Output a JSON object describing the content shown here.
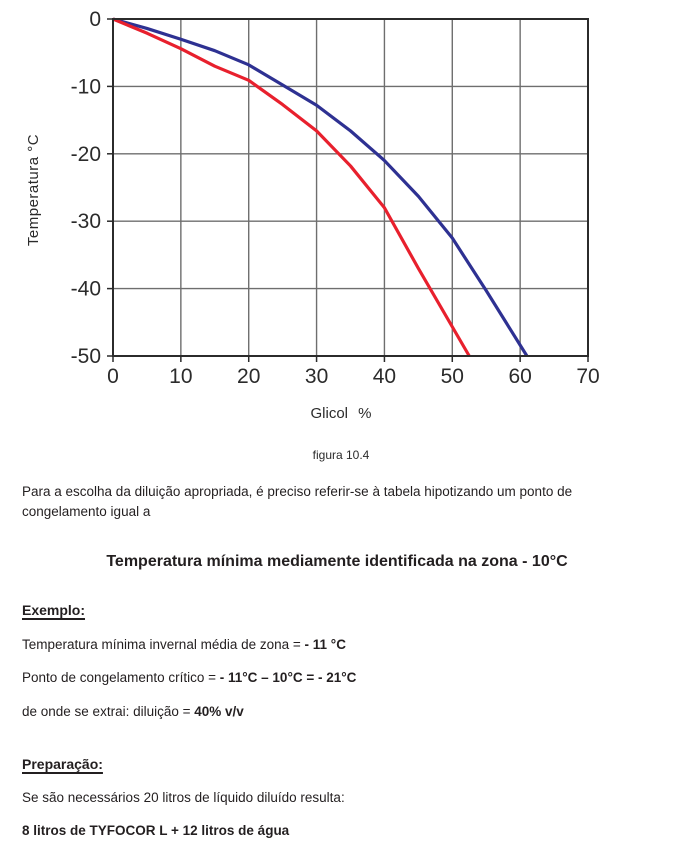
{
  "figure": {
    "caption": "figura 10.4"
  },
  "chart_data": {
    "type": "line",
    "title": "",
    "xlabel": "Glicol %",
    "ylabel": "Temperatura °C",
    "xlim": [
      0,
      70
    ],
    "ylim": [
      -50,
      0
    ],
    "x_ticks": [
      0,
      10,
      20,
      30,
      40,
      50,
      60,
      70
    ],
    "y_ticks": [
      0,
      -10,
      -20,
      -30,
      -40,
      -50
    ],
    "grid": true,
    "legend_position": "none",
    "colors": {
      "grid": "#6e6e6e",
      "axis": "#2b2b2b",
      "tick_text": "#2b2b2b"
    },
    "series": [
      {
        "name": "blue-curve",
        "color": "#2e3192",
        "points": [
          [
            0,
            0
          ],
          [
            5,
            -1.4
          ],
          [
            10,
            -3
          ],
          [
            15,
            -4.7
          ],
          [
            20,
            -6.8
          ],
          [
            25,
            -9.8
          ],
          [
            30,
            -12.8
          ],
          [
            35,
            -16.6
          ],
          [
            40,
            -21
          ],
          [
            45,
            -26.3
          ],
          [
            50,
            -32.5
          ],
          [
            55,
            -40.3
          ],
          [
            61,
            -50
          ]
        ]
      },
      {
        "name": "red-curve",
        "color": "#e8202d",
        "points": [
          [
            0,
            0
          ],
          [
            5,
            -2.1
          ],
          [
            10,
            -4.4
          ],
          [
            15,
            -7
          ],
          [
            20,
            -9.1
          ],
          [
            25,
            -12.7
          ],
          [
            30,
            -16.6
          ],
          [
            35,
            -21.8
          ],
          [
            40,
            -28
          ],
          [
            45,
            -37
          ],
          [
            52.5,
            -50
          ]
        ]
      }
    ]
  },
  "text": {
    "intro": "Para a escolha da diluição apropriada, é preciso referir-se à tabela hipotizando um ponto de congelamento igual a",
    "highlight": "Temperatura mínima mediamente identificada na zona - 10°C",
    "example_heading": "Exemplo:",
    "example_line1_normal": "Temperatura mínima invernal média de zona = ",
    "example_line1_bold": "- 11 °C",
    "example_line2_normal": "Ponto de congelamento crítico = ",
    "example_line2_bold": "- 11°C – 10°C = - 21°C",
    "example_line3_normal": "de onde se extrai: diluição = ",
    "example_line3_bold": "40% v/v",
    "preparation_heading": "Preparação:",
    "preparation_line": "Se são necessários 20 litros de líquido diluído resulta:",
    "preparation_result": "8 litros de TYFOCOR L + 12 litros de água"
  }
}
